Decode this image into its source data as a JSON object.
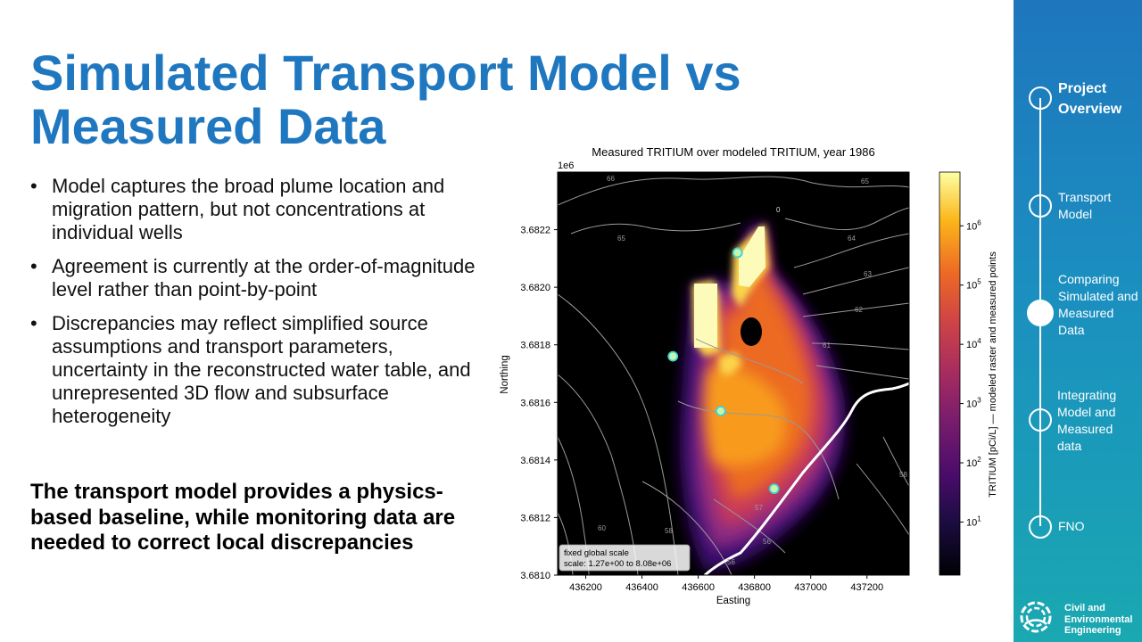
{
  "slide": {
    "title": "Simulated Transport Model vs Measured Data",
    "bullets": [
      "Model captures the broad plume location and migration pattern, but not concentrations at individual wells",
      "Agreement is currently at the order-of-magnitude level rather than point-by-point",
      "Discrepancies may reflect simplified source assumptions and transport parameters, uncertainty in the reconstructed water table, and unrepresented 3D flow and subsurface heterogeneity"
    ],
    "conclusion": "The transport model provides a physics-based baseline, while monitoring data are needed to correct local discrepancies"
  },
  "sidebar": {
    "items": [
      {
        "label": "Project Overview",
        "state": "current-section"
      },
      {
        "label": "Transport Model",
        "state": "normal"
      },
      {
        "label": "Comparing Simulated and Measured Data",
        "state": "active"
      },
      {
        "label": "Integrating Model and Measured data",
        "state": "normal"
      },
      {
        "label": "FNO",
        "state": "normal"
      }
    ],
    "logo_text": "Civil and Environmental Engineering",
    "logo_icon": "university-logo-icon"
  },
  "colors": {
    "title": "#1f77c0",
    "sidebar_top": "#1e76bd",
    "sidebar_bottom": "#1aa8b1",
    "background_raster": "#000000"
  },
  "chart_data": {
    "type": "heatmap",
    "title": "Measured TRITIUM over modeled TRITIUM, year 1986",
    "xlabel": "Easting",
    "ylabel": "Northing",
    "y_offset_label": "1e6",
    "xlim": [
      436100,
      437350
    ],
    "ylim": [
      3681000,
      3682400
    ],
    "x_ticks": [
      436200,
      436400,
      436600,
      436800,
      437000,
      437200
    ],
    "y_ticks": [
      3.681,
      3.6812,
      3.6814,
      3.6816,
      3.6818,
      3.682,
      3.6822
    ],
    "colorbar": {
      "label": "TRITIUM [pCi/L] — modeled raster and measured points",
      "scale": "log",
      "colormap": "inferno",
      "range": [
        1.27,
        8080000
      ],
      "tick_exponents": [
        1,
        2,
        3,
        4,
        5,
        6
      ]
    },
    "annotation": {
      "line1": "fixed global scale",
      "line2": "scale: 1.27e+00 to 8.08e+06"
    },
    "contour_labels": [
      "66",
      "65",
      "65",
      "64",
      "63",
      "62",
      "61",
      "60",
      "58",
      "57",
      "58",
      "56",
      "56",
      "0"
    ],
    "measured_points": [
      {
        "x": 436740,
        "y": 3682120
      },
      {
        "x": 436510,
        "y": 3681760
      },
      {
        "x": 436680,
        "y": 3681570
      },
      {
        "x": 436870,
        "y": 3681300
      }
    ]
  }
}
